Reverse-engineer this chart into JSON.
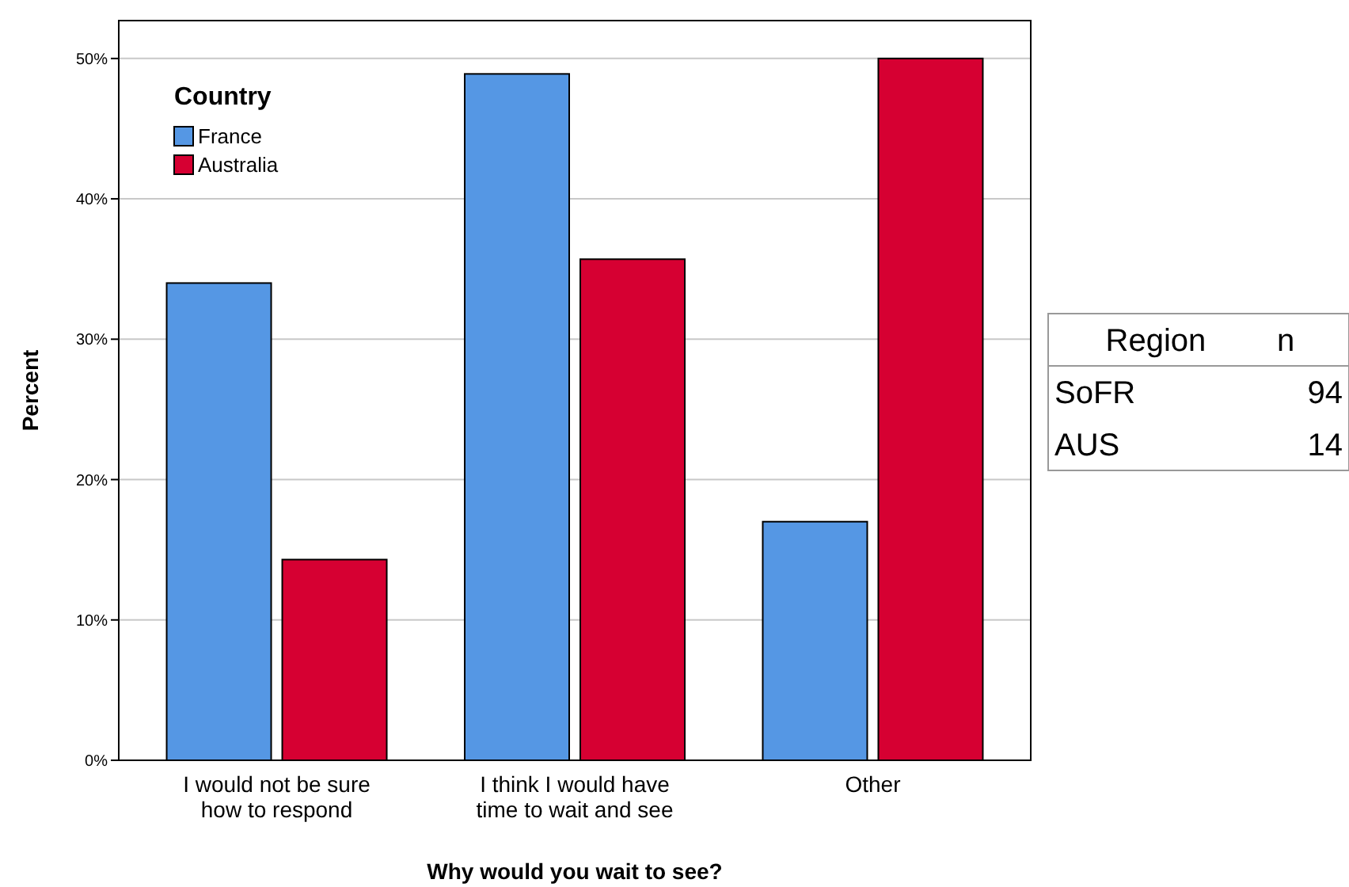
{
  "chart_data": {
    "type": "bar",
    "xlabel": "Why would you wait to see?",
    "ylabel": "Percent",
    "legend_title": "Country",
    "categories": [
      "I would not be sure how to respond",
      "I think I would have time to wait and see",
      "Other"
    ],
    "series": [
      {
        "name": "France",
        "color": "#5597e4",
        "values": [
          34.0,
          48.9,
          17.0
        ]
      },
      {
        "name": "Australia",
        "color": "#d60032",
        "values": [
          14.3,
          35.7,
          50.0
        ]
      }
    ],
    "ylim": [
      0,
      52.7
    ],
    "yticks": [
      {
        "value": 0,
        "label": "0%"
      },
      {
        "value": 10,
        "label": "10%"
      },
      {
        "value": 20,
        "label": "20%"
      },
      {
        "value": 30,
        "label": "30%"
      },
      {
        "value": 40,
        "label": "40%"
      },
      {
        "value": 50,
        "label": "50%"
      }
    ],
    "grid": "y",
    "legend": "top left",
    "annotations": [
      "Region",
      "n",
      "SoFR",
      "94",
      "AUS",
      "14"
    ]
  }
}
